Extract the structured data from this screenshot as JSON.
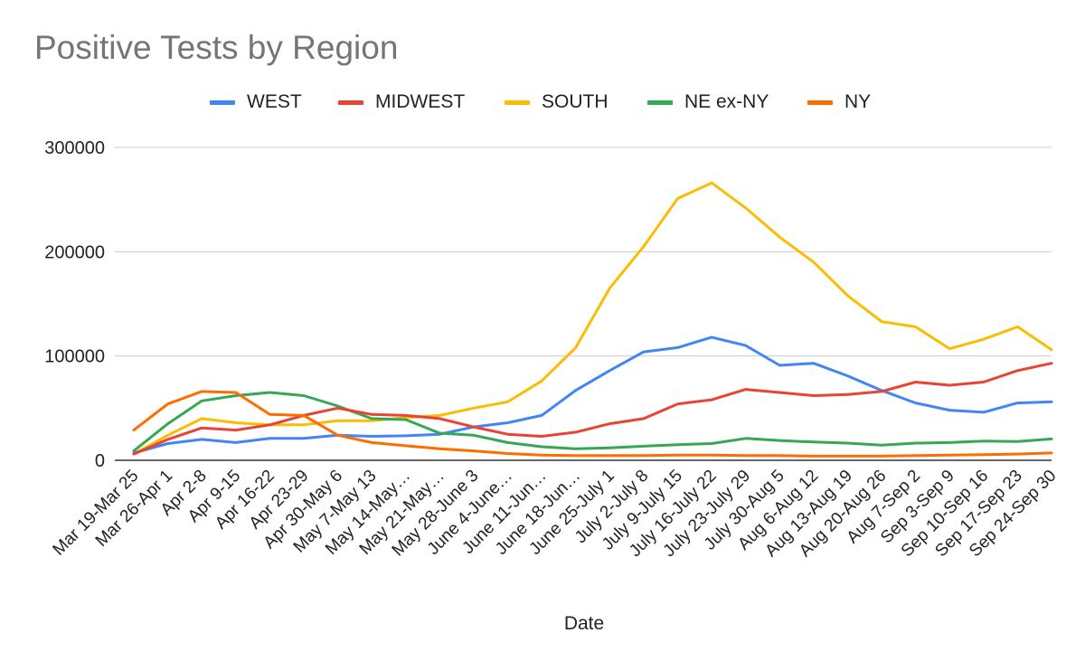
{
  "chart_data": {
    "type": "line",
    "title": "Positive Tests by Region",
    "xlabel": "Date",
    "ylabel": "",
    "ylim": [
      0,
      300000
    ],
    "yticks": [
      0,
      100000,
      200000,
      300000
    ],
    "ytick_labels": [
      "0",
      "100000",
      "200000",
      "300000"
    ],
    "grid": true,
    "legend_position": "top-center",
    "categories": [
      "Mar 19-Mar 25",
      "Mar 26-Apr 1",
      "Apr 2-8",
      "Apr 9-15",
      "Apr 16-22",
      "Apr 23-29",
      "Apr 30-May 6",
      "May 7-May 13",
      "May 14-May…",
      "May 21-May…",
      "May 28-June 3",
      "June 4-June…",
      "June 11-Jun…",
      "June 18-Jun…",
      "June 25-July 1",
      "July 2-July 8",
      "July 9-July 15",
      "July 16-July 22",
      "July 23-July 29",
      "July 30-Aug 5",
      "Aug 6-Aug 12",
      "Aug 13-Aug 19",
      "Aug 20-Aug 26",
      "Aug 7-Sep 2",
      "Sep 3-Sep 9",
      "Sep 10-Sep 16",
      "Sep 17-Sep 23",
      "Sep 24-Sep 30"
    ],
    "series": [
      {
        "name": "WEST",
        "color": "#4285f4",
        "values": [
          7000,
          16000,
          20000,
          17000,
          21000,
          21000,
          24000,
          23000,
          23500,
          25000,
          32000,
          36000,
          43000,
          67000,
          86000,
          104000,
          108000,
          118000,
          110000,
          91000,
          93000,
          81000,
          67000,
          55000,
          48000,
          46000,
          55000,
          56000
        ]
      },
      {
        "name": "MIDWEST",
        "color": "#ea4335",
        "values": [
          6000,
          20000,
          31000,
          29000,
          34000,
          43000,
          50000,
          44000,
          43000,
          40000,
          32000,
          25000,
          23000,
          27000,
          35000,
          40000,
          54000,
          58000,
          68000,
          65000,
          62000,
          63000,
          66000,
          75000,
          72000,
          75000,
          86000,
          93000
        ]
      },
      {
        "name": "SOUTH",
        "color": "#fbbc04",
        "values": [
          6000,
          24000,
          40000,
          36000,
          34000,
          34000,
          38000,
          38000,
          41000,
          43000,
          50000,
          56000,
          76000,
          108000,
          165000,
          205000,
          251000,
          266000,
          242000,
          214000,
          190000,
          158000,
          133000,
          128000,
          107000,
          116000,
          128000,
          106000
        ]
      },
      {
        "name": "NE ex-NY",
        "color": "#34a853",
        "values": [
          9000,
          35000,
          57000,
          62000,
          65000,
          62000,
          52000,
          40000,
          39000,
          26000,
          24000,
          17000,
          13000,
          11000,
          12000,
          13500,
          15000,
          16000,
          21000,
          19000,
          17500,
          16500,
          14500,
          16500,
          17000,
          18500,
          18000,
          20500
        ]
      },
      {
        "name": "NY",
        "color": "#ff6d01",
        "values": [
          29000,
          54000,
          66000,
          65000,
          44000,
          43000,
          24000,
          17000,
          14000,
          11000,
          9000,
          6500,
          5000,
          4500,
          4500,
          4500,
          5000,
          5000,
          4500,
          4500,
          4000,
          4000,
          4000,
          4500,
          5000,
          5500,
          6000,
          7000
        ]
      }
    ]
  }
}
